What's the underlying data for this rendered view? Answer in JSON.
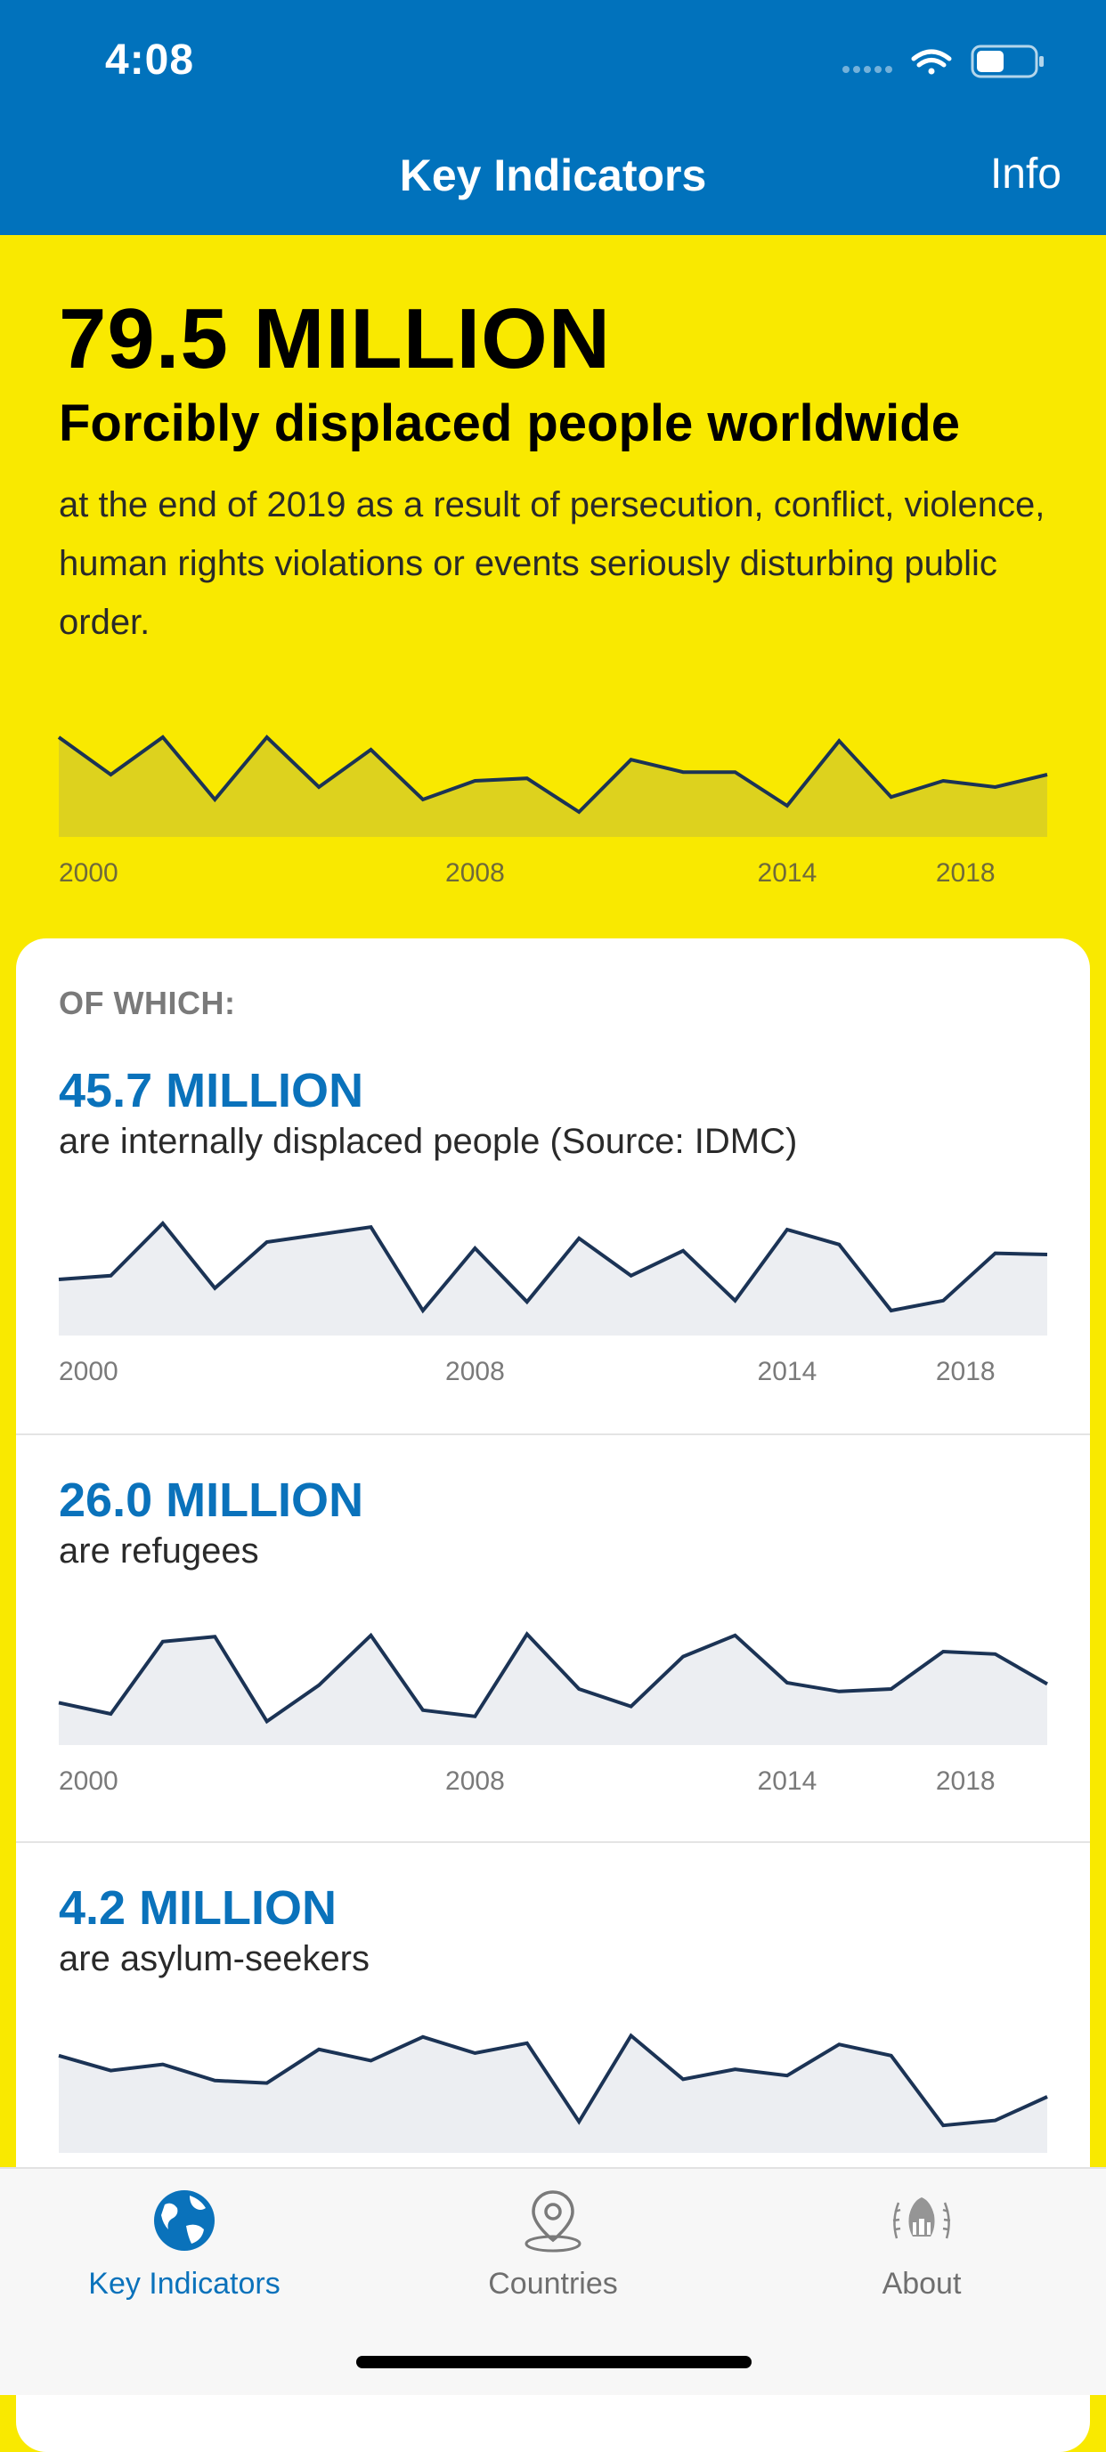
{
  "status_bar": {
    "time": "4:08",
    "icons": [
      "signal-icon",
      "wifi-icon",
      "battery-icon"
    ]
  },
  "nav": {
    "title": "Key Indicators",
    "info_label": "Info"
  },
  "headline": {
    "number": "79.5 MILLION",
    "label": "Forcibly displaced people worldwide",
    "description": "at the end of 2019 as a result of persecution, conflict, violence, human rights violations or events seriously disturbing public order."
  },
  "card": {
    "heading": "OF WHICH:",
    "sections": [
      {
        "number": "45.7 MILLION",
        "label": "are internally displaced people (Source: IDMC)"
      },
      {
        "number": "26.0 MILLION",
        "label": "are refugees"
      },
      {
        "number": "4.2 MILLION",
        "label": "are asylum-seekers"
      }
    ]
  },
  "tabs": [
    {
      "label": "Key Indicators",
      "icon": "globe-icon",
      "active": true
    },
    {
      "label": "Countries",
      "icon": "map-pin-icon",
      "active": false
    },
    {
      "label": "About",
      "icon": "unhcr-logo-icon",
      "active": false
    }
  ],
  "colors": {
    "header_blue": "#0172bc",
    "accent_blue": "#0a72bb",
    "yellow": "#f9e900",
    "line_navy": "#1b3355"
  },
  "chart_data": [
    {
      "type": "area",
      "x": [
        2000,
        2001,
        2002,
        2003,
        2004,
        2005,
        2006,
        2007,
        2008,
        2009,
        2010,
        2011,
        2012,
        2013,
        2014,
        2015,
        2016,
        2017,
        2018,
        2019
      ],
      "values": [
        0.8,
        0.5,
        0.8,
        0.3,
        0.8,
        0.4,
        0.7,
        0.3,
        0.45,
        0.47,
        0.2,
        0.62,
        0.52,
        0.52,
        0.25,
        0.77,
        0.32,
        0.45,
        0.4,
        0.5
      ],
      "xticks": [
        "2000",
        "2008",
        "2014",
        "2018"
      ],
      "ylim": [
        0,
        1
      ]
    },
    {
      "type": "area",
      "x": [
        2000,
        2001,
        2002,
        2003,
        2004,
        2005,
        2006,
        2007,
        2008,
        2009,
        2010,
        2011,
        2012,
        2013,
        2014,
        2015,
        2016,
        2017,
        2018,
        2019
      ],
      "values": [
        0.45,
        0.48,
        0.9,
        0.38,
        0.75,
        0.81,
        0.87,
        0.2,
        0.7,
        0.27,
        0.78,
        0.48,
        0.68,
        0.28,
        0.85,
        0.73,
        0.2,
        0.28,
        0.66,
        0.65
      ],
      "xticks": [
        "2000",
        "2008",
        "2014",
        "2018"
      ],
      "ylim": [
        0,
        1
      ]
    },
    {
      "type": "area",
      "x": [
        2000,
        2001,
        2002,
        2003,
        2004,
        2005,
        2006,
        2007,
        2008,
        2009,
        2010,
        2011,
        2012,
        2013,
        2014,
        2015,
        2016,
        2017,
        2018,
        2019
      ],
      "values": [
        0.34,
        0.25,
        0.83,
        0.87,
        0.19,
        0.48,
        0.88,
        0.28,
        0.23,
        0.89,
        0.45,
        0.31,
        0.71,
        0.88,
        0.5,
        0.43,
        0.45,
        0.75,
        0.73,
        0.49
      ],
      "xticks": [
        "2000",
        "2008",
        "2014",
        "2018"
      ],
      "ylim": [
        0,
        1
      ]
    },
    {
      "type": "area",
      "x": [
        2000,
        2001,
        2002,
        2003,
        2004,
        2005,
        2006,
        2007,
        2008,
        2009,
        2010,
        2011,
        2012,
        2013,
        2014,
        2015,
        2016,
        2017,
        2018,
        2019
      ],
      "values": [
        0.78,
        0.66,
        0.71,
        0.58,
        0.56,
        0.83,
        0.74,
        0.93,
        0.8,
        0.88,
        0.25,
        0.94,
        0.59,
        0.67,
        0.62,
        0.87,
        0.78,
        0.22,
        0.26,
        0.45
      ],
      "xticks": [],
      "ylim": [
        0,
        1
      ]
    }
  ]
}
